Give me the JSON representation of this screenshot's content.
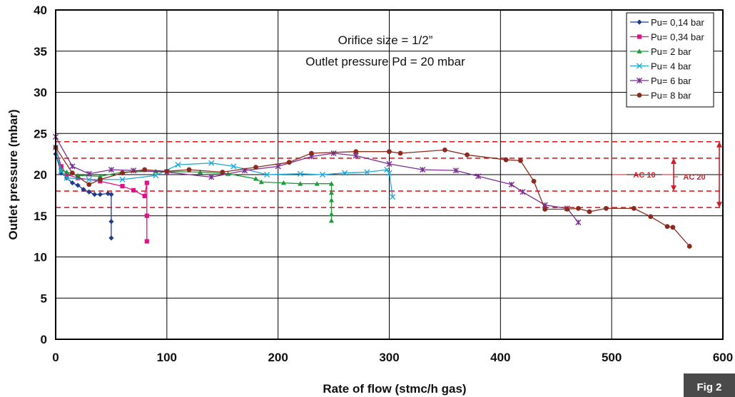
{
  "chart_data": {
    "type": "line",
    "xlabel": "Rate of flow (stmc/h gas)",
    "ylabel": "Outlet pressure (mbar)",
    "xlim": [
      0,
      600
    ],
    "ylim": [
      0,
      40
    ],
    "x_ticks": [
      0,
      100,
      200,
      300,
      400,
      500,
      600
    ],
    "y_ticks": [
      0,
      5,
      10,
      15,
      20,
      25,
      30,
      35,
      40
    ],
    "grid": true,
    "legend_position": "top-right",
    "annotation_lines": [
      "Orifice size = 1/2”",
      "Outlet pressure Pd = 20 mbar"
    ],
    "band_lines": [
      24,
      22,
      18,
      16
    ],
    "band_labels": [
      {
        "label": "AC 10",
        "low": 18,
        "high": 22
      },
      {
        "label": "AC 20",
        "low": 16,
        "high": 24
      }
    ],
    "series": [
      {
        "name": "Pu= 0,14 bar",
        "color": "#1f3b8c",
        "marker": "diamond",
        "points": [
          [
            0,
            22.5
          ],
          [
            5,
            20.2
          ],
          [
            10,
            19.6
          ],
          [
            15,
            19.0
          ],
          [
            20,
            18.7
          ],
          [
            25,
            18.2
          ],
          [
            30,
            17.9
          ],
          [
            35,
            17.6
          ],
          [
            40,
            17.6
          ],
          [
            47,
            17.7
          ],
          [
            50,
            17.6
          ],
          [
            50,
            14.3
          ],
          [
            50,
            12.3
          ]
        ]
      },
      {
        "name": "Pu= 0,34 bar",
        "color": "#e0128a",
        "marker": "square",
        "points": [
          [
            0,
            23.3
          ],
          [
            5,
            21.0
          ],
          [
            10,
            20.0
          ],
          [
            20,
            19.6
          ],
          [
            40,
            19.2
          ],
          [
            60,
            18.6
          ],
          [
            70,
            18.1
          ],
          [
            80,
            17.4
          ],
          [
            82,
            19.0
          ],
          [
            82,
            15.0
          ],
          [
            82,
            11.9
          ]
        ]
      },
      {
        "name": "Pu= 2 bar",
        "color": "#1f9a3a",
        "marker": "triangle",
        "points": [
          [
            0,
            23.3
          ],
          [
            5,
            20.6
          ],
          [
            10,
            20.3
          ],
          [
            20,
            19.9
          ],
          [
            40,
            19.8
          ],
          [
            60,
            20.3
          ],
          [
            90,
            20.4
          ],
          [
            130,
            20.3
          ],
          [
            155,
            20.1
          ],
          [
            180,
            19.5
          ],
          [
            185,
            19.1
          ],
          [
            205,
            19.0
          ],
          [
            220,
            18.9
          ],
          [
            235,
            18.9
          ],
          [
            248,
            18.9
          ],
          [
            248,
            17.8
          ],
          [
            248,
            16.9
          ],
          [
            248,
            15.2
          ],
          [
            248,
            14.4
          ]
        ]
      },
      {
        "name": "Pu= 4 bar",
        "color": "#1fa9d6",
        "marker": "x",
        "points": [
          [
            0,
            23.3
          ],
          [
            5,
            20.4
          ],
          [
            10,
            19.6
          ],
          [
            30,
            19.4
          ],
          [
            60,
            19.4
          ],
          [
            90,
            19.9
          ],
          [
            110,
            21.2
          ],
          [
            140,
            21.4
          ],
          [
            160,
            21.0
          ],
          [
            190,
            20.0
          ],
          [
            220,
            20.1
          ],
          [
            240,
            20.0
          ],
          [
            260,
            20.2
          ],
          [
            280,
            20.3
          ],
          [
            298,
            20.6
          ],
          [
            300,
            20.2
          ],
          [
            303,
            17.3
          ]
        ]
      },
      {
        "name": "Pu= 6 bar",
        "color": "#7a2e8f",
        "marker": "star",
        "points": [
          [
            0,
            24.6
          ],
          [
            15,
            21.0
          ],
          [
            30,
            20.1
          ],
          [
            50,
            20.6
          ],
          [
            70,
            20.5
          ],
          [
            100,
            20.3
          ],
          [
            140,
            19.7
          ],
          [
            170,
            20.5
          ],
          [
            200,
            21.0
          ],
          [
            230,
            22.2
          ],
          [
            250,
            22.6
          ],
          [
            270,
            22.3
          ],
          [
            300,
            21.3
          ],
          [
            330,
            20.6
          ],
          [
            360,
            20.5
          ],
          [
            380,
            19.8
          ],
          [
            410,
            18.8
          ],
          [
            420,
            17.9
          ],
          [
            440,
            16.3
          ],
          [
            460,
            15.9
          ],
          [
            470,
            14.2
          ]
        ]
      },
      {
        "name": "Pu= 8 bar",
        "color": "#8b2a1f",
        "marker": "circle",
        "points": [
          [
            0,
            23.3
          ],
          [
            15,
            20.2
          ],
          [
            30,
            18.8
          ],
          [
            40,
            19.4
          ],
          [
            60,
            20.2
          ],
          [
            80,
            20.6
          ],
          [
            100,
            20.4
          ],
          [
            120,
            20.6
          ],
          [
            150,
            20.3
          ],
          [
            180,
            20.9
          ],
          [
            210,
            21.5
          ],
          [
            230,
            22.6
          ],
          [
            270,
            22.8
          ],
          [
            300,
            22.8
          ],
          [
            310,
            22.6
          ],
          [
            350,
            23.0
          ],
          [
            370,
            22.4
          ],
          [
            405,
            21.8
          ],
          [
            418,
            21.7
          ],
          [
            430,
            19.2
          ],
          [
            440,
            15.8
          ],
          [
            460,
            15.8
          ],
          [
            470,
            15.9
          ],
          [
            480,
            15.5
          ],
          [
            495,
            15.9
          ],
          [
            520,
            15.9
          ],
          [
            535,
            14.9
          ],
          [
            550,
            13.7
          ],
          [
            555,
            13.6
          ],
          [
            570,
            11.3
          ]
        ]
      }
    ]
  },
  "fig_label": "Fig 2"
}
